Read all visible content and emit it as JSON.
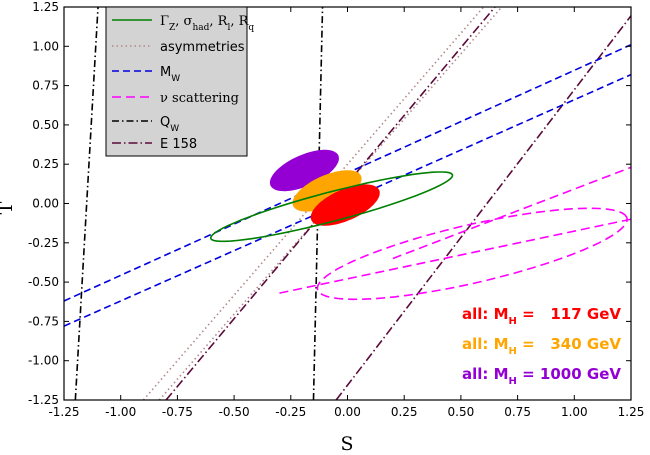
{
  "chart_data": {
    "type": "scatter",
    "xlabel": "S",
    "ylabel": "T",
    "xlim": [
      -1.25,
      1.25
    ],
    "ylim": [
      -1.25,
      1.25
    ],
    "xticks": [
      "-1.25",
      "-1.00",
      "-0.75",
      "-0.50",
      "-0.25",
      "0.00",
      "0.25",
      "0.50",
      "0.75",
      "1.00",
      "1.25"
    ],
    "yticks": [
      "1.25",
      "1.00",
      "0.75",
      "0.50",
      "0.25",
      "0.00",
      "-0.25",
      "-0.50",
      "-0.75",
      "-1.00",
      "-1.25"
    ],
    "legend_position": "top-left",
    "legend": [
      {
        "name": "gamma-z",
        "label": "Γ_Z, σ_had, R_l, R_q",
        "color": "#008000",
        "style": "solid"
      },
      {
        "name": "asymmetries",
        "label": "asymmetries",
        "color": "#b08a8a",
        "style": "dotted"
      },
      {
        "name": "mw",
        "label": "M_W",
        "color": "#0000e0",
        "style": "dashed"
      },
      {
        "name": "nu-scattering",
        "label": "ν scattering",
        "color": "#ff00ff",
        "style": "dashed"
      },
      {
        "name": "qw",
        "label": "Q_W",
        "color": "#000000",
        "style": "dashdot"
      },
      {
        "name": "e158",
        "label": "E 158",
        "color": "#5a0a3a",
        "style": "dashdot"
      }
    ],
    "constraints": {
      "gamma_z_ellipse": {
        "center": [
          -0.07,
          -0.02
        ],
        "semi_major": 0.57,
        "semi_minor": 0.09,
        "angle_deg": 21
      },
      "mw_band": [
        {
          "x": [
            -1.25,
            1.25
          ],
          "y": [
            -0.62,
            1.01
          ]
        },
        {
          "x": [
            -1.25,
            1.25
          ],
          "y": [
            -0.78,
            0.82
          ]
        }
      ],
      "nu_scattering": {
        "ellipse_center": [
          0.55,
          -0.32
        ],
        "semi_major": 0.72,
        "semi_minor": 0.18,
        "angle_deg": 19,
        "lines": [
          {
            "x": [
              0.2,
              1.25
            ],
            "y": [
              -0.35,
              0.23
            ]
          },
          {
            "x": [
              -0.3,
              1.25
            ],
            "y": [
              -0.57,
              -0.1
            ]
          }
        ]
      },
      "asymmetries_band": [
        {
          "x": [
            -0.9,
            0.6
          ],
          "y": [
            -1.25,
            1.25
          ]
        },
        {
          "x": [
            -0.83,
            0.68
          ],
          "y": [
            -1.25,
            1.25
          ]
        }
      ],
      "qw_band": [
        {
          "x": [
            -1.2,
            -1.1
          ],
          "y": [
            -1.25,
            1.25
          ]
        },
        {
          "x": [
            -0.15,
            -0.11
          ],
          "y": [
            -1.25,
            1.25
          ]
        }
      ],
      "e158_band": [
        {
          "x": [
            -0.8,
            0.65
          ],
          "y": [
            -1.25,
            1.25
          ]
        },
        {
          "x": [
            -0.05,
            1.28
          ],
          "y": [
            -1.25,
            1.25
          ]
        }
      ]
    },
    "fits": [
      {
        "label": "all: M_H = 117 GeV",
        "color": "#ff0000",
        "center": [
          -0.01,
          -0.01
        ],
        "semi_major": 0.18,
        "semi_minor": 0.09,
        "angle_deg": 38
      },
      {
        "label": "all: M_H = 340 GeV",
        "color": "#ffa500",
        "center": [
          -0.09,
          0.08
        ],
        "semi_major": 0.18,
        "semi_minor": 0.09,
        "angle_deg": 38
      },
      {
        "label": "all: M_H = 1000 GeV",
        "color": "#9400d3",
        "center": [
          -0.19,
          0.21
        ],
        "semi_major": 0.18,
        "semi_minor": 0.09,
        "angle_deg": 38
      }
    ],
    "annotations": [
      {
        "name": "annotation-mh-117",
        "prefix": "all: M",
        "sub": "H",
        "suffix": " =   117 GeV",
        "color": "#ff0000"
      },
      {
        "name": "annotation-mh-340",
        "prefix": "all: M",
        "sub": "H",
        "suffix": " =   340 GeV",
        "color": "#ffa500"
      },
      {
        "name": "annotation-mh-1000",
        "prefix": "all: M",
        "sub": "H",
        "suffix": " = 1000 GeV",
        "color": "#9400d3"
      }
    ]
  }
}
